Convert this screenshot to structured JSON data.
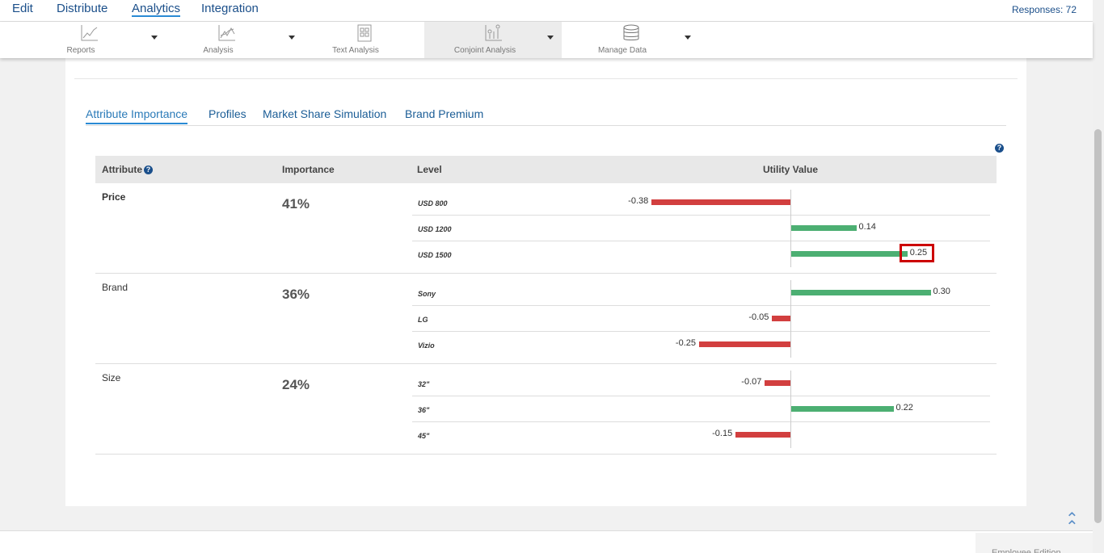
{
  "topnav": {
    "items": [
      "Edit",
      "Distribute",
      "Analytics",
      "Integration"
    ],
    "active": "Analytics",
    "responses": "Responses: 72"
  },
  "toolbar": {
    "items": [
      {
        "label": "Reports",
        "icon": "line-chart-icon"
      },
      {
        "label": "Analysis",
        "icon": "analysis-chart-icon"
      },
      {
        "label": "Text Analysis",
        "icon": "text-analysis-icon"
      },
      {
        "label": "Conjoint Analysis",
        "icon": "conjoint-icon",
        "selected": true
      },
      {
        "label": "Manage Data",
        "icon": "database-icon"
      }
    ]
  },
  "tabs": [
    "Attribute Importance",
    "Profiles",
    "Market Share Simulation",
    "Brand Premium"
  ],
  "table": {
    "headers": {
      "attribute": "Attribute",
      "importance": "Importance",
      "level": "Level",
      "utility": "Utility Value"
    },
    "groups": [
      {
        "attribute": "Price",
        "importance": "41%",
        "levels": [
          {
            "name": "USD 800",
            "value": -0.38,
            "label": "-0.38"
          },
          {
            "name": "USD 1200",
            "value": 0.14,
            "label": "0.14"
          },
          {
            "name": "USD 1500",
            "value": 0.25,
            "label": "0.25"
          }
        ]
      },
      {
        "attribute": "Brand",
        "importance": "36%",
        "levels": [
          {
            "name": "Sony",
            "value": 0.3,
            "label": "0.30"
          },
          {
            "name": "LG",
            "value": -0.05,
            "label": "-0.05"
          },
          {
            "name": "Vizio",
            "value": -0.25,
            "label": "-0.25"
          }
        ]
      },
      {
        "attribute": "Size",
        "importance": "24%",
        "levels": [
          {
            "name": "32\"",
            "value": -0.07,
            "label": "-0.07"
          },
          {
            "name": "36\"",
            "value": 0.22,
            "label": "0.22"
          },
          {
            "name": "45\"",
            "value": -0.15,
            "label": "-0.15"
          }
        ]
      }
    ]
  },
  "colors": {
    "positive": "#4caf72",
    "negative": "#d23f3f",
    "highlight": "#cc0000"
  },
  "footer": {
    "edition": "Employee Edition"
  }
}
